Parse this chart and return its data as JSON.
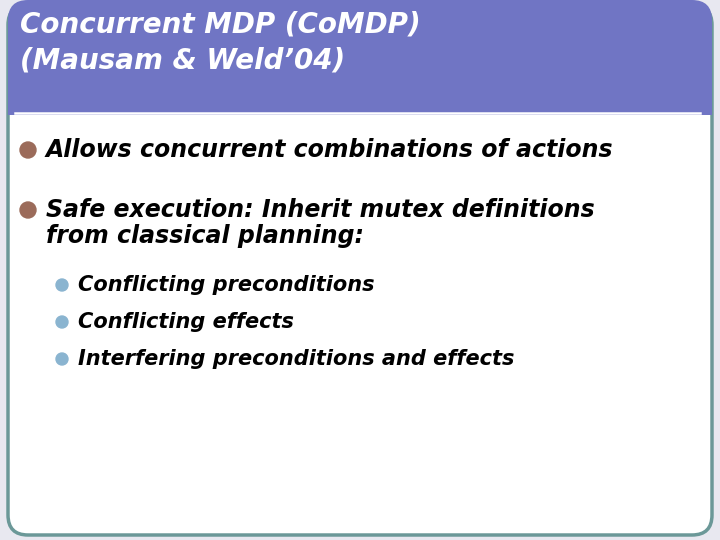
{
  "title_line1": "Concurrent MDP (CoMDP)",
  "title_line2": "(Mausam & Weld’04)",
  "title_bg_color": "#7075c4",
  "title_text_color": "#ffffff",
  "slide_bg_color": "#f0f0f8",
  "border_color": "#6b9898",
  "bullet1_dot_color": "#9b6b5a",
  "bullet2_dot_color": "#9b6b5a",
  "sub_bullet_dot_color": "#8ab4d0",
  "bullet1_text": "Allows concurrent combinations of actions",
  "bullet2_text_line1": "Safe execution: Inherit mutex definitions",
  "bullet2_text_line2": "from classical planning:",
  "sub_bullet1": "Conflicting preconditions",
  "sub_bullet2": "Conflicting effects",
  "sub_bullet3": "Interfering preconditions and effects",
  "title_fontsize": 20,
  "bullet_fontsize": 17,
  "sub_bullet_fontsize": 15,
  "fig_width": 7.2,
  "fig_height": 5.4,
  "dpi": 100
}
